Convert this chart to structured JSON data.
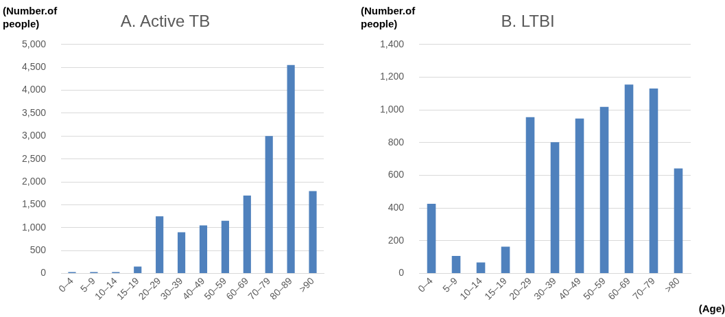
{
  "chart_data": [
    {
      "type": "bar",
      "title": "A. Active TB",
      "ylabel": "(Number.of people)",
      "categories": [
        "0–4",
        "5–9",
        "10–14",
        "15–19",
        "20–29",
        "30–39",
        "40–49",
        "50–59",
        "60–69",
        "70–79",
        "80–89",
        ">90"
      ],
      "values": [
        30,
        30,
        30,
        150,
        1250,
        900,
        1050,
        1150,
        1700,
        3000,
        4550,
        1800
      ],
      "color": "#4f81bd",
      "ylim": [
        0,
        5000
      ],
      "yticks": [
        0,
        500,
        {
          "value": 1000,
          "label": "1,000"
        },
        {
          "value": 1500,
          "label": "1,500"
        },
        {
          "value": 2000,
          "label": "2,000"
        },
        {
          "value": 2500,
          "label": "2,500"
        },
        {
          "value": 3000,
          "label": "3,000"
        },
        {
          "value": 3500,
          "label": "3,500"
        },
        {
          "value": 4000,
          "label": "4,000"
        },
        {
          "value": 4500,
          "label": "4,500"
        },
        {
          "value": 5000,
          "label": "5,000"
        }
      ],
      "grid": "y",
      "legend": false
    },
    {
      "type": "bar",
      "title": "B. LTBI",
      "ylabel": "(Number.of people)",
      "xlabel": "(Age)",
      "categories": [
        "0–4",
        "5–9",
        "10–14",
        "15–19",
        "20–29",
        "30–39",
        "40–49",
        "50–59",
        "60–69",
        "70–79",
        ">80"
      ],
      "values": [
        426,
        107,
        68,
        164,
        956,
        803,
        947,
        1019,
        1155,
        1131,
        642
      ],
      "color": "#4f81bd",
      "ylim": [
        0,
        1400
      ],
      "yticks": [
        0,
        200,
        400,
        600,
        800,
        {
          "value": 1000,
          "label": "1,000"
        },
        {
          "value": 1200,
          "label": "1,200"
        },
        {
          "value": 1400,
          "label": "1,400"
        }
      ],
      "grid": "y",
      "legend": false
    }
  ]
}
